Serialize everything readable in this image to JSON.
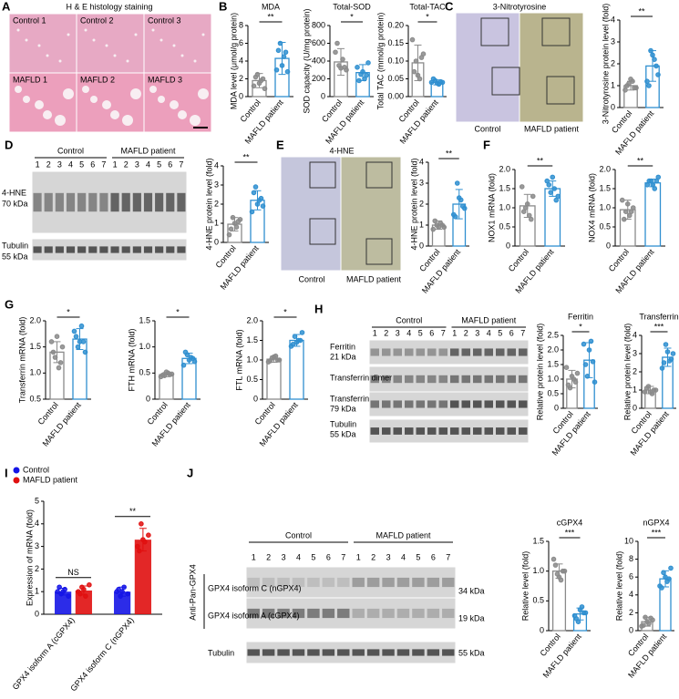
{
  "panels": [
    "A",
    "B",
    "C",
    "D",
    "E",
    "F",
    "G",
    "H",
    "I",
    "J"
  ],
  "panel_a": {
    "title": "H & E histology staining",
    "labels": [
      "Control 1",
      "Control 2",
      "Control 3",
      "MAFLD 1",
      "MAFLD 2",
      "MAFLD 3"
    ]
  },
  "panel_c": {
    "title": "3-Nitrotyrosine",
    "groups": [
      "Control",
      "MAFLD patient"
    ]
  },
  "panel_d": {
    "groups": [
      "Control",
      "MAFLD patient"
    ],
    "lanes": [
      1,
      2,
      3,
      4,
      5,
      6,
      7
    ],
    "bands": [
      {
        "name": "4-HNE",
        "size": "70 kDa"
      },
      {
        "name": "Tubulin",
        "size": "55 kDa"
      }
    ]
  },
  "panel_e": {
    "title": "4-HNE",
    "groups": [
      "Control",
      "MAFLD patient"
    ]
  },
  "panel_h": {
    "groups": [
      "Control",
      "MAFLD patient"
    ],
    "lanes": [
      1,
      2,
      3,
      4,
      5,
      6,
      7
    ],
    "bands": [
      {
        "name": "Ferritin",
        "size": "21 kDa"
      },
      {
        "name": "Transferrin dimer"
      },
      {
        "name": "Transferrin",
        "size": "79 kDa"
      },
      {
        "name": "Tubulin",
        "size": "55 kDa"
      }
    ]
  },
  "panel_j": {
    "antibody": "Anti-Pan-GPX4",
    "groups": [
      "Control",
      "MAFLD patient"
    ],
    "lanes": [
      1,
      2,
      3,
      4,
      5,
      6,
      7
    ],
    "bands": [
      {
        "name": "GPX4 isoform C (nGPX4)",
        "size": "34 kDa"
      },
      {
        "name": "GPX4 isoform A (cGPX4)",
        "size": "19 kDa"
      },
      {
        "name": "Tubulin",
        "size": "55 kDa"
      }
    ]
  },
  "chart_data": [
    {
      "type": "bar",
      "title": "MDA",
      "ylabel": "MDA level (μmol/g protein)",
      "categories": [
        "Control",
        "MAFLD patient"
      ],
      "values": [
        1.8,
        4.3
      ],
      "errors": [
        0.8,
        1.8
      ],
      "points": [
        [
          1.2,
          2.5,
          1.8,
          0.9,
          2.2,
          1.5,
          2.0
        ],
        [
          3.0,
          6.0,
          4.5,
          2.8,
          5.2,
          3.5,
          5.0
        ]
      ],
      "colors": [
        "#8a8a8a",
        "#2f8fd0"
      ],
      "ylim": [
        0,
        8
      ],
      "yticks": [
        0,
        2,
        4,
        6,
        8
      ],
      "annotation": "**"
    },
    {
      "type": "bar",
      "title": "Total-SOD",
      "ylabel": "SOD capacity (U/mg protein)",
      "categories": [
        "Control",
        "MAFLD patient"
      ],
      "values": [
        390,
        270
      ],
      "errors": [
        150,
        90
      ],
      "points": [
        [
          500,
          350,
          420,
          300,
          600,
          320,
          330
        ],
        [
          330,
          250,
          200,
          380,
          180,
          280,
          240
        ]
      ],
      "colors": [
        "#8a8a8a",
        "#2f8fd0"
      ],
      "ylim": [
        0,
        800
      ],
      "yticks": [
        0,
        200,
        400,
        600,
        800
      ],
      "annotation": "*"
    },
    {
      "type": "bar",
      "title": "Total-TAC",
      "ylabel": "Total TAC (mmol/g protein)",
      "categories": [
        "Control",
        "MAFLD patient"
      ],
      "values": [
        0.095,
        0.04
      ],
      "errors": [
        0.05,
        0.007
      ],
      "points": [
        [
          0.16,
          0.1,
          0.05,
          0.12,
          0.07,
          0.06,
          0.11
        ],
        [
          0.04,
          0.045,
          0.035,
          0.04,
          0.05,
          0.038,
          0.042
        ]
      ],
      "colors": [
        "#8a8a8a",
        "#2f8fd0"
      ],
      "ylim": [
        0,
        0.2
      ],
      "yticks": [
        {
          "value": 0,
          "label": "0.00"
        },
        {
          "value": 0.05,
          "label": "0.05"
        },
        {
          "value": 0.1,
          "label": "0.10"
        },
        {
          "value": 0.15,
          "label": "0.15"
        },
        {
          "value": 0.2,
          "label": "0.20"
        }
      ],
      "annotation": "*"
    },
    {
      "type": "bar",
      "ylabel": "3-Nitrotyrosine protein level (fold)",
      "categories": [
        "Control",
        "MAFLD patient"
      ],
      "values": [
        1.0,
        1.9
      ],
      "errors": [
        0.2,
        0.7
      ],
      "points": [
        [
          0.8,
          1.1,
          1.2,
          0.9,
          1.0,
          1.3,
          0.9
        ],
        [
          1.2,
          2.6,
          2.2,
          1.5,
          1.0,
          2.4,
          1.9
        ]
      ],
      "colors": [
        "#8a8a8a",
        "#2f8fd0"
      ],
      "ylim": [
        0,
        4
      ],
      "yticks": [
        0,
        1,
        2,
        3,
        4
      ],
      "annotation": "**"
    },
    {
      "type": "bar",
      "ylabel": "4-HNE protein level (fold)",
      "categories": [
        "Control",
        "MAFLD patient"
      ],
      "values": [
        0.95,
        2.2
      ],
      "errors": [
        0.35,
        0.5
      ],
      "points": [
        [
          0.4,
          1.3,
          0.8,
          1.2,
          0.7,
          1.0,
          1.1
        ],
        [
          1.6,
          2.9,
          2.2,
          1.9,
          2.6,
          2.0,
          2.3
        ]
      ],
      "colors": [
        "#8a8a8a",
        "#2f8fd0"
      ],
      "ylim": [
        0,
        4
      ],
      "yticks": [
        0,
        1,
        2,
        3,
        4
      ],
      "annotation": "**"
    },
    {
      "type": "bar",
      "ylabel": "4-HNE protein level (fold)",
      "categories": [
        "Control",
        "MAFLD patient"
      ],
      "values": [
        1.0,
        2.0
      ],
      "errors": [
        0.2,
        0.7
      ],
      "points": [
        [
          0.8,
          1.0,
          1.1,
          0.9,
          1.2,
          0.9,
          1.0
        ],
        [
          1.5,
          3.0,
          2.2,
          1.8,
          1.4,
          2.3,
          1.9
        ]
      ],
      "colors": [
        "#8a8a8a",
        "#2f8fd0"
      ],
      "ylim": [
        0,
        4
      ],
      "yticks": [
        0,
        1,
        2,
        3,
        4
      ],
      "annotation": "**"
    },
    {
      "type": "bar",
      "ylabel": "NOX1 mRNA (fold)",
      "categories": [
        "Control",
        "MAFLD patient"
      ],
      "values": [
        1.05,
        1.5
      ],
      "errors": [
        0.3,
        0.2
      ],
      "points": [
        [
          1.55,
          1.0,
          0.8,
          1.3,
          0.9,
          1.1,
          0.7
        ],
        [
          1.7,
          1.4,
          1.5,
          1.3,
          1.6,
          1.8,
          1.2
        ]
      ],
      "colors": [
        "#8a8a8a",
        "#2f8fd0"
      ],
      "ylim": [
        0,
        2
      ],
      "yticks": [
        0,
        0.5,
        {
          "value": 1,
          "label": "1.0"
        },
        1.5,
        {
          "value": 2,
          "label": "2.0"
        }
      ],
      "annotation": "**"
    },
    {
      "type": "bar",
      "ylabel": "NOX4 mRNA (fold)",
      "categories": [
        "Control",
        "MAFLD patient"
      ],
      "values": [
        0.95,
        1.65
      ],
      "errors": [
        0.25,
        0.1
      ],
      "points": [
        [
          1.2,
          0.9,
          0.8,
          1.0,
          0.7,
          1.1,
          0.9
        ],
        [
          1.6,
          1.7,
          1.5,
          1.8,
          1.7,
          1.6,
          1.7
        ]
      ],
      "colors": [
        "#8a8a8a",
        "#2f8fd0"
      ],
      "ylim": [
        0,
        2
      ],
      "yticks": [
        0,
        0.5,
        {
          "value": 1,
          "label": "1.0"
        },
        1.5,
        {
          "value": 2,
          "label": "2.0"
        }
      ],
      "annotation": "**"
    },
    {
      "type": "bar",
      "ylabel": "Transferrin mRNA (fold)",
      "categories": [
        "Control",
        "MAFLD patient"
      ],
      "values": [
        1.4,
        1.65
      ],
      "errors": [
        0.2,
        0.2
      ],
      "points": [
        [
          1.6,
          1.3,
          1.1,
          1.5,
          1.4,
          1.7,
          1.2
        ],
        [
          1.8,
          1.5,
          1.9,
          1.4,
          1.7,
          1.6,
          1.6
        ]
      ],
      "colors": [
        "#8a8a8a",
        "#2f8fd0"
      ],
      "ylim": [
        0.5,
        2
      ],
      "yticks": [
        0.5,
        {
          "value": 1,
          "label": "1.0"
        },
        1.5,
        {
          "value": 2,
          "label": "2.0"
        }
      ],
      "annotation": "*"
    },
    {
      "type": "bar",
      "ylabel": "FTH mRNA (fold)",
      "categories": [
        "Control",
        "MAFLD patient"
      ],
      "values": [
        0.47,
        0.78
      ],
      "errors": [
        0.04,
        0.1
      ],
      "points": [
        [
          0.43,
          0.45,
          0.5,
          0.48,
          0.46,
          0.52,
          0.47
        ],
        [
          0.65,
          0.85,
          0.8,
          0.72,
          0.9,
          0.75,
          0.78
        ]
      ],
      "colors": [
        "#8a8a8a",
        "#2f8fd0"
      ],
      "ylim": [
        0,
        1.5
      ],
      "yticks": [
        0,
        0.5,
        {
          "value": 1,
          "label": "1.0"
        },
        1.5
      ],
      "annotation": "*"
    },
    {
      "type": "bar",
      "ylabel": "FTL mRNA (fold)",
      "categories": [
        "Control",
        "MAFLD patient"
      ],
      "values": [
        1.02,
        1.5
      ],
      "errors": [
        0.08,
        0.15
      ],
      "points": [
        [
          0.95,
          1.05,
          1.1,
          1.0,
          0.98,
          1.08,
          1.0
        ],
        [
          1.35,
          1.6,
          1.5,
          1.7,
          1.4,
          1.45,
          1.5
        ]
      ],
      "colors": [
        "#8a8a8a",
        "#2f8fd0"
      ],
      "ylim": [
        0,
        2
      ],
      "yticks": [
        0,
        0.5,
        {
          "value": 1,
          "label": "1.0"
        },
        1.5,
        {
          "value": 2,
          "label": "2.0"
        }
      ],
      "annotation": "*"
    },
    {
      "type": "bar",
      "title": "Ferritin",
      "ylabel": "Relative protein level (fold)",
      "categories": [
        "Control",
        "MAFLD patient"
      ],
      "values": [
        1.0,
        1.65
      ],
      "errors": [
        0.3,
        0.6
      ],
      "points": [
        [
          1.4,
          0.7,
          1.0,
          1.2,
          0.8,
          1.1,
          0.9
        ],
        [
          2.2,
          1.1,
          2.3,
          0.9,
          1.5,
          2.0,
          1.6
        ]
      ],
      "colors": [
        "#8a8a8a",
        "#2f8fd0"
      ],
      "ylim": [
        0,
        2.5
      ],
      "yticks": [
        0,
        0.5,
        {
          "value": 1,
          "label": "1.0"
        },
        1.5,
        {
          "value": 2,
          "label": "2.0"
        },
        2.5
      ],
      "annotation": "*"
    },
    {
      "type": "bar",
      "title": "Transferrin",
      "ylabel": "Relative protein level (fold)",
      "categories": [
        "Control",
        "MAFLD patient"
      ],
      "values": [
        1.0,
        2.8
      ],
      "errors": [
        0.2,
        0.5
      ],
      "points": [
        [
          0.9,
          1.2,
          0.8,
          1.0,
          1.1,
          0.9,
          1.0
        ],
        [
          2.2,
          3.5,
          2.6,
          3.0,
          2.5,
          3.1,
          2.7
        ]
      ],
      "colors": [
        "#8a8a8a",
        "#2f8fd0"
      ],
      "ylim": [
        0,
        4
      ],
      "yticks": [
        0,
        1,
        2,
        3,
        4
      ],
      "annotation": "***"
    },
    {
      "type": "grouped",
      "ylabel": "Expression of mRNA (fold)",
      "categories": [
        "GPX4 isoform A (cGPX4)",
        "GPX4 isoform C (nGPX4)"
      ],
      "series": [
        {
          "name": "Control",
          "color": "#1515e6",
          "values": [
            1.0,
            1.0
          ],
          "errors": [
            0.15,
            0.2
          ],
          "points": [
            [
              1.0,
              0.9,
              1.1,
              0.8,
              1.2,
              1.0
            ],
            [
              1.0,
              0.8,
              1.2,
              0.9,
              1.1,
              1.0
            ]
          ]
        },
        {
          "name": "MAFLD patient",
          "color": "#e01010",
          "values": [
            1.05,
            3.3
          ],
          "errors": [
            0.2,
            0.5
          ],
          "points": [
            [
              1.0,
              1.2,
              0.8,
              1.3,
              0.9,
              1.1
            ],
            [
              3.0,
              4.0,
              3.2,
              3.5,
              2.8,
              3.3
            ]
          ]
        }
      ],
      "ylim": [
        0,
        5
      ],
      "yticks": [
        0,
        1,
        2,
        3,
        4,
        5
      ],
      "annotations": [
        "NS",
        "**"
      ],
      "legend": "top-left"
    },
    {
      "type": "bar",
      "title": "cGPX4",
      "ylabel": "Relative level (fold)",
      "categories": [
        "Control",
        "MAFLD patient"
      ],
      "values": [
        1.0,
        0.28
      ],
      "errors": [
        0.12,
        0.1
      ],
      "points": [
        [
          1.2,
          0.95,
          0.85,
          1.0,
          1.1,
          0.9,
          1.0
        ],
        [
          0.25,
          0.15,
          0.4,
          0.3,
          0.2,
          0.35,
          0.3
        ]
      ],
      "colors": [
        "#8a8a8a",
        "#2f8fd0"
      ],
      "ylim": [
        0,
        1.5
      ],
      "yticks": [
        0,
        0.5,
        {
          "value": 1,
          "label": "1.0"
        },
        1.5
      ],
      "annotation": "***"
    },
    {
      "type": "bar",
      "title": "nGPX4",
      "ylabel": "Relative level (fold)",
      "categories": [
        "Control",
        "MAFLD patient"
      ],
      "values": [
        1.0,
        5.8
      ],
      "errors": [
        0.5,
        0.9
      ],
      "points": [
        [
          0.5,
          1.5,
          0.8,
          1.2,
          0.6,
          1.0,
          1.4
        ],
        [
          5.0,
          6.5,
          5.5,
          7.0,
          4.8,
          6.0,
          5.8
        ]
      ],
      "colors": [
        "#8a8a8a",
        "#2f8fd0"
      ],
      "ylim": [
        0,
        10
      ],
      "yticks": [
        0,
        2,
        4,
        6,
        8,
        10
      ],
      "annotation": "***"
    }
  ]
}
